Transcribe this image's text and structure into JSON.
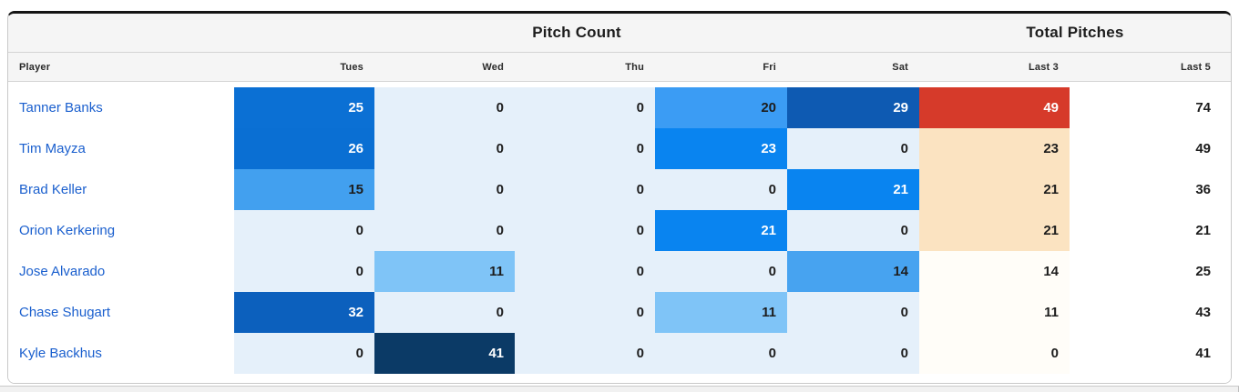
{
  "card": {
    "group_headers": [
      {
        "label": "Pitch Count"
      },
      {
        "label": "Total Pitches"
      }
    ],
    "columns": [
      {
        "label": "Player",
        "align": "left"
      },
      {
        "label": "Tues",
        "align": "right"
      },
      {
        "label": "Wed",
        "align": "right"
      },
      {
        "label": "Thu",
        "align": "right"
      },
      {
        "label": "Fri",
        "align": "right"
      },
      {
        "label": "Sat",
        "align": "right"
      },
      {
        "label": "Last 3",
        "align": "right"
      },
      {
        "label": "Last 5",
        "align": "right",
        "last": true
      }
    ],
    "rows": [
      {
        "player": "Tanner Banks",
        "cells": [
          {
            "value": "25",
            "bg": "#0b70d4",
            "fg": "#ffffff"
          },
          {
            "value": "0",
            "bg": "#e5f0fa",
            "fg": "#1d1d1d"
          },
          {
            "value": "0",
            "bg": "#e5f0fa",
            "fg": "#1d1d1d"
          },
          {
            "value": "20",
            "bg": "#3b9cf4",
            "fg": "#1d1d1d"
          },
          {
            "value": "29",
            "bg": "#0e5ab2",
            "fg": "#ffffff"
          },
          {
            "value": "49",
            "bg": "#d63a2a",
            "fg": "#ffffff"
          },
          {
            "value": "74",
            "bg": "",
            "fg": "#1d1d1d"
          }
        ]
      },
      {
        "player": "Tim Mayza",
        "cells": [
          {
            "value": "26",
            "bg": "#0a6fd3",
            "fg": "#ffffff"
          },
          {
            "value": "0",
            "bg": "#e5f0fa",
            "fg": "#1d1d1d"
          },
          {
            "value": "0",
            "bg": "#e5f0fa",
            "fg": "#1d1d1d"
          },
          {
            "value": "23",
            "bg": "#0984f0",
            "fg": "#ffffff"
          },
          {
            "value": "0",
            "bg": "#e5f0fa",
            "fg": "#1d1d1d"
          },
          {
            "value": "23",
            "bg": "#fbe3c1",
            "fg": "#1d1d1d"
          },
          {
            "value": "49",
            "bg": "",
            "fg": "#1d1d1d"
          }
        ]
      },
      {
        "player": "Brad Keller",
        "cells": [
          {
            "value": "15",
            "bg": "#42a0ef",
            "fg": "#1d1d1d"
          },
          {
            "value": "0",
            "bg": "#e5f0fa",
            "fg": "#1d1d1d"
          },
          {
            "value": "0",
            "bg": "#e5f0fa",
            "fg": "#1d1d1d"
          },
          {
            "value": "0",
            "bg": "#e5f0fa",
            "fg": "#1d1d1d"
          },
          {
            "value": "21",
            "bg": "#0984f0",
            "fg": "#ffffff"
          },
          {
            "value": "21",
            "bg": "#fbe3c1",
            "fg": "#1d1d1d"
          },
          {
            "value": "36",
            "bg": "",
            "fg": "#1d1d1d"
          }
        ]
      },
      {
        "player": "Orion Kerkering",
        "cells": [
          {
            "value": "0",
            "bg": "#e5f0fa",
            "fg": "#1d1d1d"
          },
          {
            "value": "0",
            "bg": "#e5f0fa",
            "fg": "#1d1d1d"
          },
          {
            "value": "0",
            "bg": "#e5f0fa",
            "fg": "#1d1d1d"
          },
          {
            "value": "21",
            "bg": "#0984f0",
            "fg": "#ffffff"
          },
          {
            "value": "0",
            "bg": "#e5f0fa",
            "fg": "#1d1d1d"
          },
          {
            "value": "21",
            "bg": "#fbe3c1",
            "fg": "#1d1d1d"
          },
          {
            "value": "21",
            "bg": "",
            "fg": "#1d1d1d"
          }
        ]
      },
      {
        "player": "Jose Alvarado",
        "cells": [
          {
            "value": "0",
            "bg": "#e5f0fa",
            "fg": "#1d1d1d"
          },
          {
            "value": "11",
            "bg": "#7fc4f7",
            "fg": "#1d1d1d"
          },
          {
            "value": "0",
            "bg": "#e5f0fa",
            "fg": "#1d1d1d"
          },
          {
            "value": "0",
            "bg": "#e5f0fa",
            "fg": "#1d1d1d"
          },
          {
            "value": "14",
            "bg": "#47a3f0",
            "fg": "#1d1d1d"
          },
          {
            "value": "14",
            "bg": "#fffdf8",
            "fg": "#1d1d1d"
          },
          {
            "value": "25",
            "bg": "",
            "fg": "#1d1d1d"
          }
        ]
      },
      {
        "player": "Chase Shugart",
        "cells": [
          {
            "value": "32",
            "bg": "#0c60bd",
            "fg": "#ffffff"
          },
          {
            "value": "0",
            "bg": "#e5f0fa",
            "fg": "#1d1d1d"
          },
          {
            "value": "0",
            "bg": "#e5f0fa",
            "fg": "#1d1d1d"
          },
          {
            "value": "11",
            "bg": "#7fc4f7",
            "fg": "#1d1d1d"
          },
          {
            "value": "0",
            "bg": "#e5f0fa",
            "fg": "#1d1d1d"
          },
          {
            "value": "11",
            "bg": "#fffdf8",
            "fg": "#1d1d1d"
          },
          {
            "value": "43",
            "bg": "",
            "fg": "#1d1d1d"
          }
        ]
      },
      {
        "player": "Kyle Backhus",
        "cells": [
          {
            "value": "0",
            "bg": "#e5f0fa",
            "fg": "#1d1d1d"
          },
          {
            "value": "41",
            "bg": "#0b3a66",
            "fg": "#ffffff"
          },
          {
            "value": "0",
            "bg": "#e5f0fa",
            "fg": "#1d1d1d"
          },
          {
            "value": "0",
            "bg": "#e5f0fa",
            "fg": "#1d1d1d"
          },
          {
            "value": "0",
            "bg": "#e5f0fa",
            "fg": "#1d1d1d"
          },
          {
            "value": "0",
            "bg": "#fffdf8",
            "fg": "#1d1d1d"
          },
          {
            "value": "41",
            "bg": "",
            "fg": "#1d1d1d"
          }
        ]
      }
    ]
  },
  "colors": {
    "card_top_border": "#141414",
    "card_border": "#c9c9c9",
    "header_bg": "#f5f5f5",
    "player_link": "#1a5fce",
    "heat_zero": "#e5f0fa",
    "heat_max_blue": "#0b3a66",
    "heat_hot_red": "#d63a2a",
    "heat_warm_peach": "#fbe3c1",
    "scrollbar_track": "#f1f1f1"
  }
}
